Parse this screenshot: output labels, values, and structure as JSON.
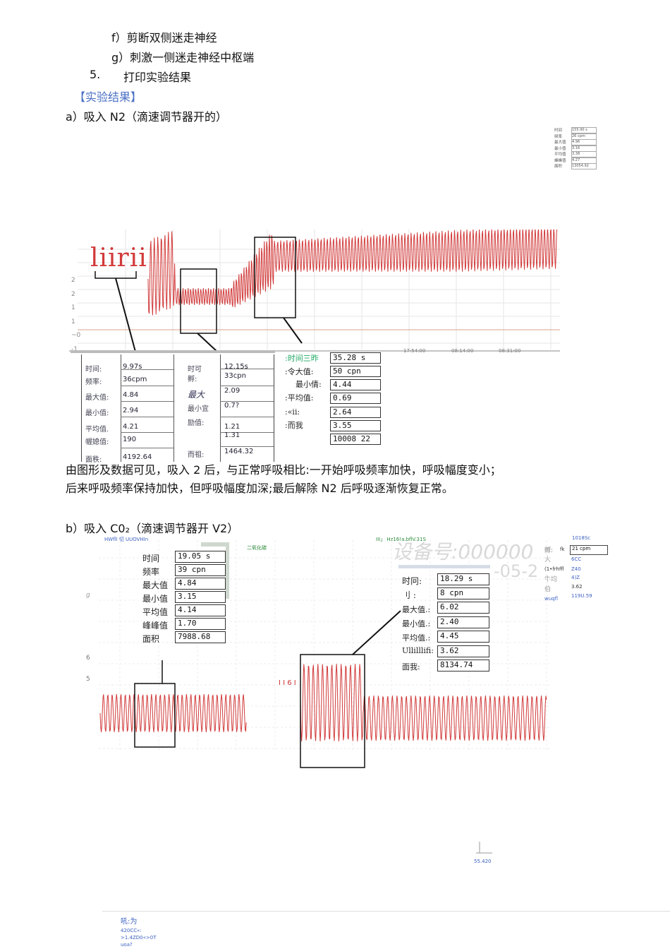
{
  "steps": {
    "f": "f）剪断双侧迷走神经",
    "g": "g）刺激一侧迷走神经中枢端",
    "five_num": "5.",
    "five_text": "打印实验结果"
  },
  "results_heading": "【实验结果】",
  "section_a": {
    "title": "a）吸入 N2（滴速调节器开的）",
    "corner_legend": [
      "时间",
      "频率",
      "最大值",
      "最小值",
      "平均值",
      "峰峰值",
      "面积"
    ],
    "corner_values": [
      "155.90 s",
      "26 cpm",
      "4.96",
      "3.16",
      "3.38",
      "4.27",
      "13054.92"
    ],
    "chart_watermark": "liirii",
    "y_ticks": [
      "2",
      "2",
      "1",
      "1",
      "~0",
      "-1"
    ],
    "x_ticks": [
      "17:54:00",
      "08:14:00",
      "08:31:00"
    ],
    "table1": {
      "labels": [
        "时间:",
        "频率:",
        "最大值:",
        "最小值:",
        "平均值.",
        "幄媳值:",
        "面秩:"
      ],
      "values": [
        "9.97s",
        "36cpm",
        "4.84",
        "2.94",
        "4.21",
        "190",
        "4192.64"
      ]
    },
    "table2": {
      "labels": [
        "时可",
        "孵:",
        "最大",
        "最小宜",
        "励值:",
        "而祖:"
      ],
      "values": [
        "12.15s",
        "33cpn",
        "2.09",
        "0.7?",
        "1.21",
        "1.31",
        "1464.32"
      ]
    },
    "table3": {
      "labels": [
        ":时间三昨",
        ":令大值:",
        "最小倩:",
        ":平均值:",
        ":«ii:",
        ":而我"
      ],
      "values": [
        "35.28 s",
        "50 cpn",
        "4.44",
        "0.69",
        "2.64",
        "3.55",
        "10008 22"
      ]
    },
    "conclusion_1": "由图形及数据可见，吸入 2 后，与正常呼吸相比:一开始呼吸频率加快，呼吸幅度变小；",
    "conclusion_2": "后来呼吸频率保持加快，但呼吸幅度加深;最后解除 N2 后呼吸逐渐恢复正常。"
  },
  "section_b": {
    "title": "b）吸入 C0₂（滴速调节器开 V2）",
    "header_left": "HWfll 切 UUOVHIn",
    "header_mid": "二氧化碳",
    "header_right": "III」 Hz16!a.bflV.31S",
    "watermark_1": "设备号:000000",
    "watermark_2": "-05-2",
    "right_top": "1018Sc",
    "right_labels": [
      "孵:",
      "大",
      "(1•frhffl",
      "牛均",
      "伯",
      "wuqfl"
    ],
    "right_values": [
      "fk",
      "21 cpm",
      "6CC",
      "Z40",
      "4)Z",
      "3.62",
      "119U.59"
    ],
    "left_y_label": "g",
    "y_ticks": [
      "6",
      "5"
    ],
    "left_box": {
      "labels": [
        "时间",
        "频率",
        "最大值",
        "最小值",
        "平均值",
        "峰峰值",
        "面积"
      ],
      "values": [
        "19.05 s",
        "39 cpn",
        "4.84",
        "3.15",
        "4.14",
        "1.70",
        "7988.68"
      ]
    },
    "right_box": {
      "labels": [
        "时冋:",
        "刂 :",
        "最大值.:",
        "最小值.:",
        "平均值.:",
        "Ullilllifi:",
        "面我:"
      ],
      "values": [
        "18.29 s",
        "8 cpn",
        "6.02",
        "2.40",
        "4.45",
        "3.62",
        "8134.74"
      ]
    },
    "tiny_label": "55.420",
    "mid_ticks": "I I 6 I"
  },
  "footer": {
    "line1": "吼:为",
    "line2": "420CC«:",
    "line3": ">1.4ZD0«>0T",
    "line4": "uoa?"
  }
}
